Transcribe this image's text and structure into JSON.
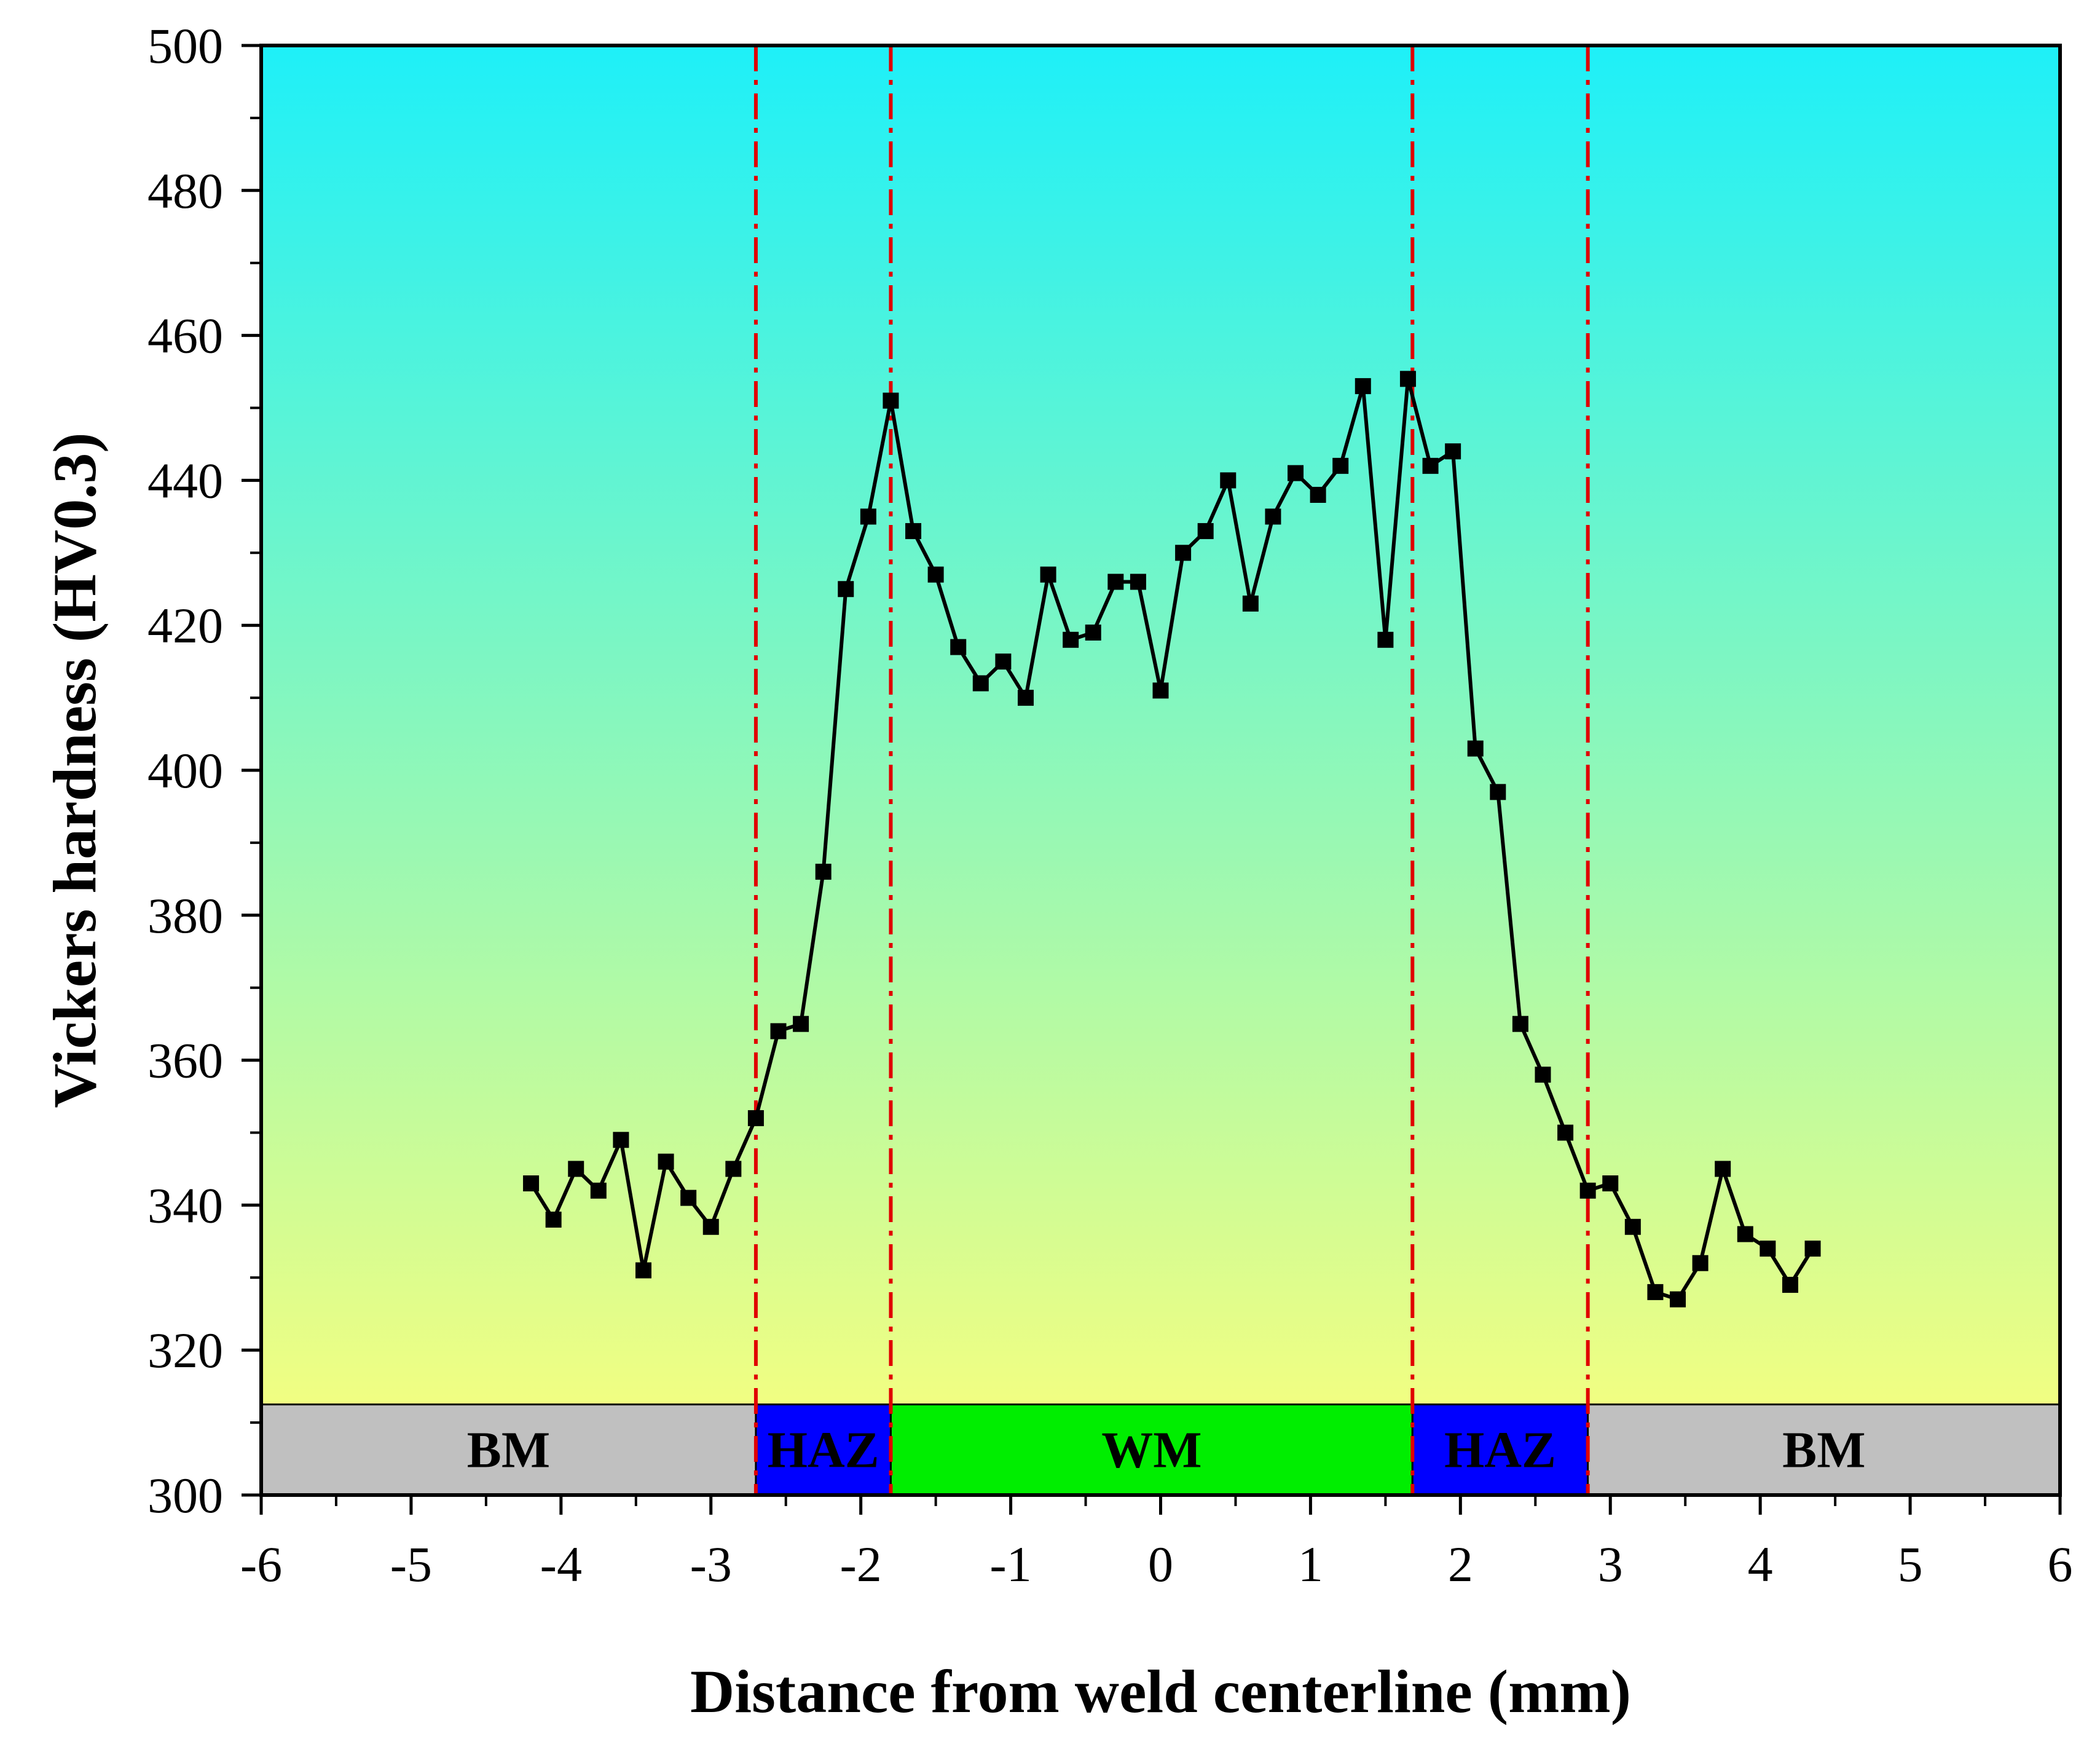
{
  "chart_data": {
    "type": "line",
    "title": "",
    "xlabel": "Distance from weld centerline (mm)",
    "ylabel": "Vickers hardness (HV0.3)",
    "xlim": [
      -6,
      6
    ],
    "ylim": [
      300,
      500
    ],
    "xticks": [
      -6,
      -5,
      -4,
      -3,
      -2,
      -1,
      0,
      1,
      2,
      3,
      4,
      5,
      6
    ],
    "yticks": [
      300,
      320,
      340,
      360,
      380,
      400,
      420,
      440,
      460,
      480,
      500
    ],
    "x_minor_step": 0.5,
    "y_minor_step": 10,
    "background_gradient": {
      "top": "#1ef0f8",
      "bottom": "#ffff7a"
    },
    "series": [
      {
        "name": "hardness",
        "color": "#000000",
        "marker": "square",
        "x": [
          -4.2,
          -4.05,
          -3.9,
          -3.75,
          -3.6,
          -3.45,
          -3.3,
          -3.15,
          -3.0,
          -2.85,
          -2.7,
          -2.55,
          -2.4,
          -2.25,
          -2.1,
          -1.95,
          -1.8,
          -1.65,
          -1.5,
          -1.35,
          -1.2,
          -1.05,
          -0.9,
          -0.75,
          -0.6,
          -0.45,
          -0.3,
          -0.15,
          0.0,
          0.15,
          0.3,
          0.45,
          0.6,
          0.75,
          0.9,
          1.05,
          1.2,
          1.35,
          1.5,
          1.65,
          1.8,
          1.95,
          2.1,
          2.25,
          2.4,
          2.55,
          2.7,
          2.85,
          3.0,
          3.15,
          3.3,
          3.45,
          3.6,
          3.75,
          3.9,
          4.05,
          4.2,
          4.35
        ],
        "values": [
          343,
          338,
          345,
          342,
          349,
          331,
          346,
          341,
          337,
          345,
          352,
          364,
          365,
          386,
          425,
          435,
          451,
          433,
          427,
          417,
          412,
          415,
          410,
          427,
          418,
          419,
          426,
          426,
          411,
          430,
          433,
          440,
          423,
          435,
          441,
          438,
          442,
          453,
          418,
          454,
          442,
          444,
          403,
          397,
          365,
          358,
          350,
          342,
          343,
          337,
          328,
          327,
          332,
          345,
          336,
          334,
          329,
          334
        ]
      }
    ],
    "boundaries": {
      "color": "#e00000",
      "style": "dash-dot",
      "x": [
        -2.7,
        -1.8,
        1.68,
        2.85
      ]
    },
    "zones": {
      "y_range": [
        300,
        312.5
      ],
      "items": [
        {
          "label": "BM",
          "from": -6,
          "to": -2.7,
          "color": "#c0c0c0"
        },
        {
          "label": "HAZ",
          "from": -2.7,
          "to": -1.8,
          "color": "#0000ff"
        },
        {
          "label": "WM",
          "from": -1.8,
          "to": 1.68,
          "color": "#00ee00"
        },
        {
          "label": "HAZ",
          "from": 1.68,
          "to": 2.85,
          "color": "#0000ff"
        },
        {
          "label": "BM",
          "from": 2.85,
          "to": 6,
          "color": "#c0c0c0"
        }
      ]
    }
  }
}
